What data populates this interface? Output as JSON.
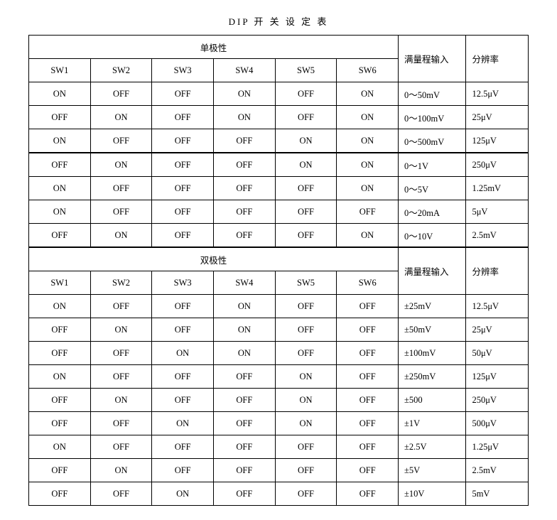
{
  "title": "DIP 开 关 设 定 表",
  "labels": {
    "unipolar": "单极性",
    "bipolar": "双极性",
    "range_in": "满量程输入",
    "resolution": "分辨率",
    "sw": [
      "SW1",
      "SW2",
      "SW3",
      "SW4",
      "SW5",
      "SW6"
    ]
  },
  "unipolar_rows": [
    {
      "sw": [
        "ON",
        "OFF",
        "OFF",
        "ON",
        "OFF",
        "ON"
      ],
      "range": "0～50mV",
      "res": "12.5μV"
    },
    {
      "sw": [
        "OFF",
        "ON",
        "OFF",
        "ON",
        "OFF",
        "ON"
      ],
      "range": "0～100mV",
      "res": "25μV"
    },
    {
      "sw": [
        "ON",
        "OFF",
        "OFF",
        "OFF",
        "ON",
        "ON"
      ],
      "range": "0～500mV",
      "res": "125μV"
    },
    {
      "sw": [
        "OFF",
        "ON",
        "OFF",
        "OFF",
        "ON",
        "ON"
      ],
      "range": "0～1V",
      "res": "250μV"
    },
    {
      "sw": [
        "ON",
        "OFF",
        "OFF",
        "OFF",
        "OFF",
        "ON"
      ],
      "range": "0～5V",
      "res": "1.25mV"
    },
    {
      "sw": [
        "ON",
        "OFF",
        "OFF",
        "OFF",
        "OFF",
        "OFF"
      ],
      "range": "0～20mA",
      "res": "5μV"
    },
    {
      "sw": [
        "OFF",
        "ON",
        "OFF",
        "OFF",
        "OFF",
        "ON"
      ],
      "range": "0～10V",
      "res": "2.5mV"
    }
  ],
  "bipolar_rows": [
    {
      "sw": [
        "ON",
        "OFF",
        "OFF",
        "ON",
        "OFF",
        "OFF"
      ],
      "range": "±25mV",
      "res": "12.5μV"
    },
    {
      "sw": [
        "OFF",
        "ON",
        "OFF",
        "ON",
        "OFF",
        "OFF"
      ],
      "range": "±50mV",
      "res": "25μV"
    },
    {
      "sw": [
        "OFF",
        "OFF",
        "ON",
        "ON",
        "OFF",
        "OFF"
      ],
      "range": "±100mV",
      "res": "50μV"
    },
    {
      "sw": [
        "ON",
        "OFF",
        "OFF",
        "OFF",
        "ON",
        "OFF"
      ],
      "range": "±250mV",
      "res": "125μV"
    },
    {
      "sw": [
        "OFF",
        "ON",
        "OFF",
        "OFF",
        "ON",
        "OFF"
      ],
      "range": "±500",
      "res": "250μV"
    },
    {
      "sw": [
        "OFF",
        "OFF",
        "ON",
        "OFF",
        "ON",
        "OFF"
      ],
      "range": "±1V",
      "res": "500μV"
    },
    {
      "sw": [
        "ON",
        "OFF",
        "OFF",
        "OFF",
        "OFF",
        "OFF"
      ],
      "range": "±2.5V",
      "res": "1.25μV"
    },
    {
      "sw": [
        "OFF",
        "ON",
        "OFF",
        "OFF",
        "OFF",
        "OFF"
      ],
      "range": "±5V",
      "res": "2.5mV"
    },
    {
      "sw": [
        "OFF",
        "OFF",
        "ON",
        "OFF",
        "OFF",
        "OFF"
      ],
      "range": "±10V",
      "res": "5mV"
    }
  ]
}
